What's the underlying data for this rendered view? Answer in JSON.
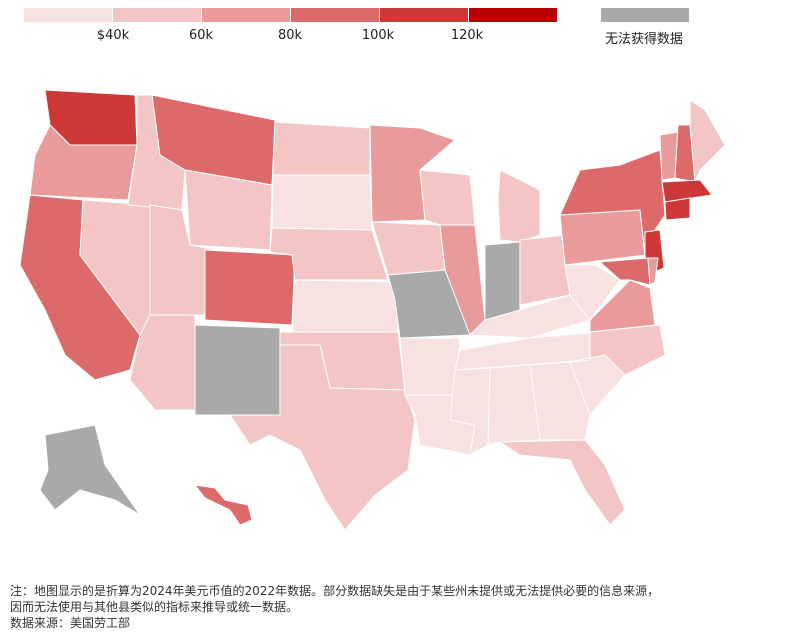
{
  "legend": {
    "colors": [
      "#f8e1e1",
      "#f3c5c5",
      "#e99a9a",
      "#dc6a6a",
      "#cc3838",
      "#b80000"
    ],
    "ticks": [
      "$40k",
      "60k",
      "80k",
      "100k",
      "120k"
    ],
    "na_color": "#a9a9a9",
    "na_label": "无法获得数据"
  },
  "map_regions": [
    {
      "name": "Washington",
      "level": 4
    },
    {
      "name": "Oregon",
      "level": 2
    },
    {
      "name": "California",
      "level": 3
    },
    {
      "name": "Nevada",
      "level": 1
    },
    {
      "name": "Idaho",
      "level": 1
    },
    {
      "name": "Montana",
      "level": 3
    },
    {
      "name": "Wyoming",
      "level": 1
    },
    {
      "name": "Utah",
      "level": 1
    },
    {
      "name": "Arizona",
      "level": 1
    },
    {
      "name": "Colorado",
      "level": 3
    },
    {
      "name": "New Mexico",
      "level": "na"
    },
    {
      "name": "North Dakota",
      "level": 1
    },
    {
      "name": "South Dakota",
      "level": 0
    },
    {
      "name": "Nebraska",
      "level": 1
    },
    {
      "name": "Kansas",
      "level": 0
    },
    {
      "name": "Oklahoma",
      "level": 1
    },
    {
      "name": "Texas",
      "level": 1
    },
    {
      "name": "Minnesota",
      "level": 2
    },
    {
      "name": "Iowa",
      "level": 1
    },
    {
      "name": "Missouri",
      "level": "na"
    },
    {
      "name": "Arkansas",
      "level": 0
    },
    {
      "name": "Louisiana",
      "level": 0
    },
    {
      "name": "Wisconsin",
      "level": 1
    },
    {
      "name": "Illinois",
      "level": 2
    },
    {
      "name": "Indiana",
      "level": "na"
    },
    {
      "name": "Michigan",
      "level": 1
    },
    {
      "name": "Ohio",
      "level": 1
    },
    {
      "name": "Kentucky",
      "level": 0
    },
    {
      "name": "Tennessee",
      "level": 0
    },
    {
      "name": "Mississippi",
      "level": 0
    },
    {
      "name": "Alabama",
      "level": 0
    },
    {
      "name": "Georgia",
      "level": 0
    },
    {
      "name": "Florida",
      "level": 1
    },
    {
      "name": "South Carolina",
      "level": 0
    },
    {
      "name": "North Carolina",
      "level": 1
    },
    {
      "name": "Virginia",
      "level": 2
    },
    {
      "name": "West Virginia",
      "level": 0
    },
    {
      "name": "Pennsylvania",
      "level": 2
    },
    {
      "name": "New York",
      "level": 3
    },
    {
      "name": "Vermont",
      "level": 2
    },
    {
      "name": "New Hampshire",
      "level": 3
    },
    {
      "name": "Maine",
      "level": 1
    },
    {
      "name": "Massachusetts",
      "level": 4
    },
    {
      "name": "Connecticut",
      "level": 4
    },
    {
      "name": "New Jersey",
      "level": 4
    },
    {
      "name": "Maryland",
      "level": 3
    },
    {
      "name": "Delaware",
      "level": 2
    },
    {
      "name": "Alaska",
      "level": "na"
    },
    {
      "name": "Hawaii",
      "level": 3
    }
  ],
  "footnote": {
    "line1": "注：地图显示的是折算为2024年美元币值的2022年数据。部分数据缺失是由于某些州未提供或无法提供必要的信息来源，",
    "line2": "因而无法使用与其他县类似的指标来推导或统一数据。",
    "line3": "数据来源：美国劳工部"
  }
}
